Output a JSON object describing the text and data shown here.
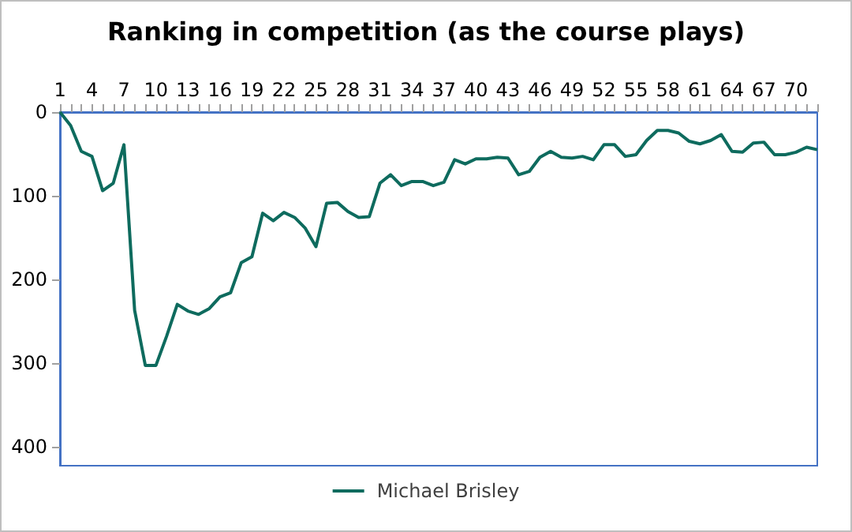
{
  "chart_data": {
    "type": "line",
    "title": "Ranking in competition (as the course plays)",
    "categories": [
      "1",
      null,
      null,
      "4",
      null,
      null,
      "7",
      null,
      null,
      "10",
      null,
      null,
      "13",
      null,
      null,
      "16",
      null,
      null,
      "19",
      null,
      null,
      "22",
      null,
      null,
      "25",
      null,
      null,
      "28",
      null,
      null,
      "31",
      null,
      null,
      "34",
      null,
      null,
      "37",
      null,
      null,
      "40",
      null,
      null,
      "43",
      null,
      null,
      "46",
      null,
      null,
      "49",
      null,
      null,
      "52",
      null,
      null,
      "55",
      null,
      null,
      "58",
      null,
      null,
      "61",
      null,
      null,
      "64",
      null,
      null,
      "67",
      null,
      null,
      "70",
      null,
      null
    ],
    "series": [
      {
        "name": "Michael Brisley",
        "color": "#0e6b5e",
        "values": [
          0,
          16,
          47,
          53,
          94,
          85,
          39,
          237,
          303,
          303,
          268,
          230,
          238,
          242,
          235,
          221,
          216,
          180,
          173,
          121,
          130,
          120,
          126,
          139,
          161,
          109,
          108,
          119,
          126,
          125,
          85,
          75,
          88,
          83,
          83,
          88,
          84,
          57,
          62,
          56,
          56,
          54,
          55,
          75,
          71,
          54,
          47,
          54,
          55,
          53,
          57,
          39,
          39,
          53,
          51,
          34,
          22,
          22,
          25,
          35,
          38,
          34,
          27,
          47,
          48,
          37,
          36,
          51,
          51,
          48,
          42,
          45
        ]
      }
    ],
    "ylim": [
      423,
      0
    ],
    "yticks": [
      0,
      100,
      200,
      300,
      400
    ],
    "grid": false,
    "legend": "bottom",
    "marker": "none",
    "line_style": "solid"
  }
}
